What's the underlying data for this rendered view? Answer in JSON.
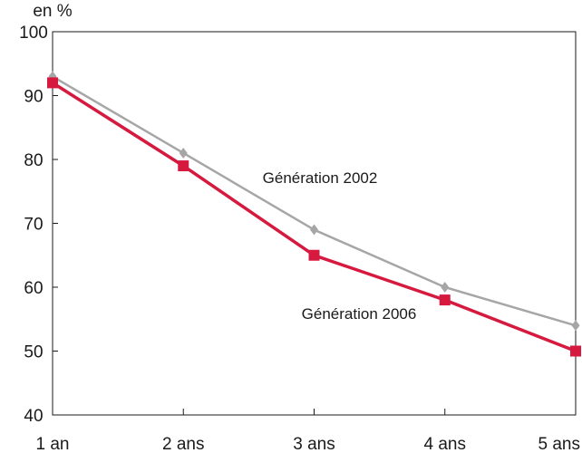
{
  "chart_data": {
    "type": "line",
    "ylabel": "en %",
    "xlabel": "",
    "title": "",
    "categories": [
      "1 an",
      "2 ans",
      "3 ans",
      "4 ans",
      "5 ans"
    ],
    "ylim": [
      40,
      100
    ],
    "yticks": [
      40,
      50,
      60,
      70,
      80,
      90,
      100
    ],
    "grid": false,
    "legend": "inline labels",
    "series": [
      {
        "name": "Génération 2002",
        "values": [
          93,
          81,
          69,
          60,
          54
        ],
        "color": "#a6a6a6",
        "marker": "diamond"
      },
      {
        "name": "Génération 2006",
        "values": [
          92,
          79,
          65,
          58,
          50
        ],
        "color": "#d6193f",
        "marker": "square"
      }
    ]
  }
}
